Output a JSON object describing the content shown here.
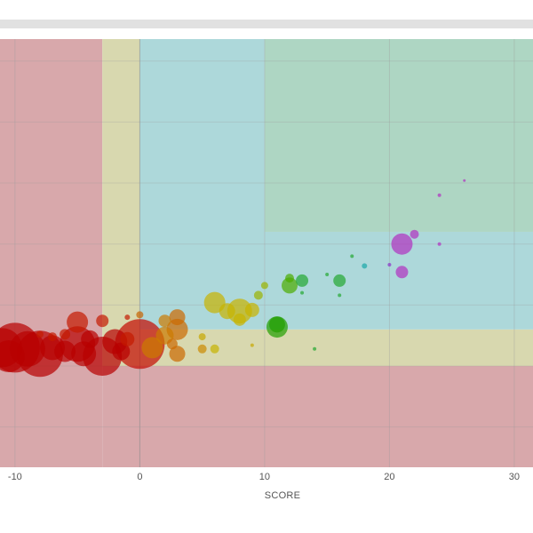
{
  "header": {
    "bar": ""
  },
  "chart_data": {
    "type": "scatter",
    "title": "",
    "xlabel": "SCORE",
    "ylabel": "",
    "xlim": [
      -11.2,
      31.5
    ],
    "ylim": [
      -13.3,
      21.8
    ],
    "x_ticks": [
      -10,
      0,
      10,
      20,
      30
    ],
    "x_tick_labels": [
      "-10",
      "0",
      "10",
      "20",
      "30"
    ],
    "y_grid": [
      -10,
      -5,
      0,
      5,
      10,
      15,
      20
    ],
    "grid": true,
    "legend": "none",
    "regions": [
      {
        "x": [
          -11.2,
          -3
        ],
        "y": [
          -13.3,
          21.8
        ],
        "color": "#d8a8ab"
      },
      {
        "x": [
          -3,
          31.5
        ],
        "y": [
          -13.3,
          -5
        ],
        "color": "#d8a8ab"
      },
      {
        "x": [
          -3,
          0
        ],
        "y": [
          -5,
          21.8
        ],
        "color": "#d8d8af"
      },
      {
        "x": [
          0,
          31.5
        ],
        "y": [
          -5,
          -2
        ],
        "color": "#d8d8af"
      },
      {
        "x": [
          0,
          10
        ],
        "y": [
          -2,
          21.8
        ],
        "color": "#add8da"
      },
      {
        "x": [
          10,
          31.5
        ],
        "y": [
          -2,
          6
        ],
        "color": "#add8da"
      },
      {
        "x": [
          10,
          31.5
        ],
        "y": [
          6,
          21.8
        ],
        "color": "#aed6c3"
      }
    ],
    "points": [
      {
        "x": -11,
        "y": -3.5,
        "size": 22,
        "color": "#b80000"
      },
      {
        "x": -10,
        "y": -3.5,
        "size": 28,
        "color": "#b80000"
      },
      {
        "x": -10.5,
        "y": -4.2,
        "size": 18,
        "color": "#b80000"
      },
      {
        "x": -9,
        "y": -3.6,
        "size": 20,
        "color": "#b80000"
      },
      {
        "x": -8,
        "y": -4.0,
        "size": 26,
        "color": "#b80000"
      },
      {
        "x": -7,
        "y": -3.5,
        "size": 14,
        "color": "#b80000"
      },
      {
        "x": -6,
        "y": -3.8,
        "size": 12,
        "color": "#b80000"
      },
      {
        "x": -5,
        "y": -3.2,
        "size": 20,
        "color": "#b80000"
      },
      {
        "x": -4.5,
        "y": -4.0,
        "size": 14,
        "color": "#b80000"
      },
      {
        "x": -4,
        "y": -2.8,
        "size": 10,
        "color": "#b80000"
      },
      {
        "x": -3,
        "y": -4.2,
        "size": 22,
        "color": "#b80000"
      },
      {
        "x": -2,
        "y": -3.0,
        "size": 14,
        "color": "#b80000"
      },
      {
        "x": -1.5,
        "y": -3.8,
        "size": 10,
        "color": "#b80000"
      },
      {
        "x": -5,
        "y": -1.4,
        "size": 12,
        "color": "#c41a00"
      },
      {
        "x": -3,
        "y": -1.3,
        "size": 7,
        "color": "#c41a00"
      },
      {
        "x": -6,
        "y": -2.4,
        "size": 6,
        "color": "#c41a00"
      },
      {
        "x": -7,
        "y": -2.6,
        "size": 5,
        "color": "#c41a00"
      },
      {
        "x": -8,
        "y": -2.4,
        "size": 4,
        "color": "#c41a00"
      },
      {
        "x": -1,
        "y": -1.0,
        "size": 3,
        "color": "#c41a00"
      },
      {
        "x": -1,
        "y": -2.8,
        "size": 8,
        "color": "#c41a00"
      },
      {
        "x": 0,
        "y": -3.2,
        "size": 28,
        "color": "#c40a00"
      },
      {
        "x": 0,
        "y": -0.8,
        "size": 4,
        "color": "#c86400"
      },
      {
        "x": 1,
        "y": -3.5,
        "size": 12,
        "color": "#cc7a00"
      },
      {
        "x": 2,
        "y": -2.5,
        "size": 10,
        "color": "#cc7a00"
      },
      {
        "x": 2,
        "y": -1.3,
        "size": 7,
        "color": "#cc7a00"
      },
      {
        "x": 3,
        "y": -1.0,
        "size": 9,
        "color": "#cc6a00"
      },
      {
        "x": 3,
        "y": -2.0,
        "size": 12,
        "color": "#cc6a00"
      },
      {
        "x": 3,
        "y": -4.0,
        "size": 9,
        "color": "#cc6a00"
      },
      {
        "x": 2.6,
        "y": -3.2,
        "size": 6,
        "color": "#cc6a00"
      },
      {
        "x": 5,
        "y": -3.6,
        "size": 5,
        "color": "#cc8a00"
      },
      {
        "x": 5,
        "y": -2.6,
        "size": 4,
        "color": "#c8a800"
      },
      {
        "x": 6,
        "y": -3.6,
        "size": 5,
        "color": "#c8b400"
      },
      {
        "x": 6,
        "y": 0.2,
        "size": 12,
        "color": "#c8b400"
      },
      {
        "x": 7,
        "y": -0.5,
        "size": 9,
        "color": "#c8b400"
      },
      {
        "x": 8,
        "y": -0.5,
        "size": 14,
        "color": "#c8b400"
      },
      {
        "x": 8,
        "y": -1.2,
        "size": 7,
        "color": "#c8b400"
      },
      {
        "x": 9,
        "y": -0.4,
        "size": 8,
        "color": "#c8b400"
      },
      {
        "x": 9.5,
        "y": 0.8,
        "size": 5,
        "color": "#9ab400"
      },
      {
        "x": 10,
        "y": 1.6,
        "size": 4,
        "color": "#9ab400"
      },
      {
        "x": 9,
        "y": -3.3,
        "size": 2,
        "color": "#c8a800"
      },
      {
        "x": 11,
        "y": -1.8,
        "size": 12,
        "color": "#22a000"
      },
      {
        "x": 11,
        "y": -1.6,
        "size": 9,
        "color": "#22a000"
      },
      {
        "x": 12,
        "y": 1.6,
        "size": 9,
        "color": "#4cac00"
      },
      {
        "x": 12,
        "y": 2.2,
        "size": 5,
        "color": "#4cac00"
      },
      {
        "x": 13,
        "y": 2.0,
        "size": 7,
        "color": "#22a830"
      },
      {
        "x": 13,
        "y": 1.0,
        "size": 2,
        "color": "#22a830"
      },
      {
        "x": 14,
        "y": -3.6,
        "size": 2,
        "color": "#22a830"
      },
      {
        "x": 15,
        "y": 2.5,
        "size": 2,
        "color": "#22a830"
      },
      {
        "x": 16,
        "y": 2.0,
        "size": 7,
        "color": "#22a830"
      },
      {
        "x": 16,
        "y": 0.8,
        "size": 2,
        "color": "#22a830"
      },
      {
        "x": 17,
        "y": 4.0,
        "size": 2,
        "color": "#22a830"
      },
      {
        "x": 18,
        "y": 3.2,
        "size": 3,
        "color": "#1aa8a8"
      },
      {
        "x": 20,
        "y": 3.3,
        "size": 2,
        "color": "#8a30c8"
      },
      {
        "x": 21,
        "y": 5.0,
        "size": 12,
        "color": "#b030c0"
      },
      {
        "x": 21,
        "y": 2.7,
        "size": 7,
        "color": "#b030c0"
      },
      {
        "x": 22,
        "y": 5.8,
        "size": 5,
        "color": "#b030c0"
      },
      {
        "x": 24,
        "y": 5.0,
        "size": 2,
        "color": "#b030c0"
      },
      {
        "x": 24,
        "y": 9.0,
        "size": 2,
        "color": "#b030c0"
      },
      {
        "x": 26,
        "y": 10.2,
        "size": 1.5,
        "color": "#b030c0"
      }
    ]
  }
}
